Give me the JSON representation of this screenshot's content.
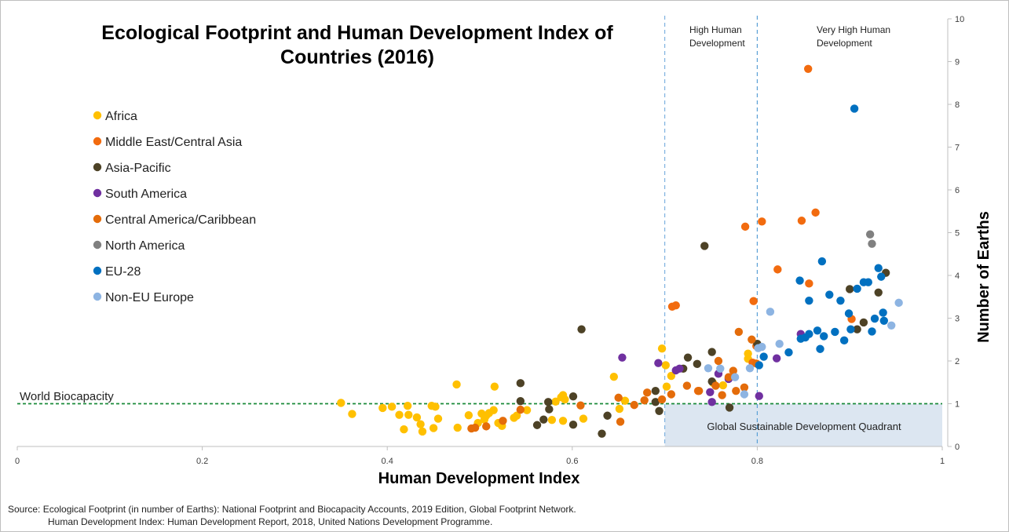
{
  "chart_data": {
    "type": "scatter",
    "title_lines": [
      "Ecological Footprint and Human Development Index of",
      "Countries (2016)"
    ],
    "xlabel": "Human Development Index",
    "ylabel": "Number of Earths",
    "xlim": [
      0,
      1
    ],
    "ylim": [
      0,
      10
    ],
    "xticks": [
      "0",
      "0.2",
      "0.4",
      "0.6",
      "0.8",
      "1"
    ],
    "yticks": [
      "0",
      "1",
      "2",
      "3",
      "4",
      "5",
      "6",
      "7",
      "8",
      "9",
      "10"
    ],
    "legend_position": "left",
    "reference_line": {
      "label": "World Biocapacity",
      "y": 1,
      "color": "#1a8a3a"
    },
    "regions": [
      {
        "label_lines": [
          "High Human",
          "Development"
        ],
        "x_from": 0.7,
        "x_to": 0.8
      },
      {
        "label_lines": [
          "Very High Human",
          "Development"
        ],
        "x_from": 0.8,
        "x_to": 1.0
      }
    ],
    "quadrant": {
      "label": "Global Sustainable Development Quadrant",
      "x": [
        0.7,
        1.0
      ],
      "y": [
        0,
        1
      ],
      "color": "#dce6f1"
    },
    "series": [
      {
        "name": "Africa",
        "color": "#ffc000",
        "points": [
          [
            0.35,
            1.02
          ],
          [
            0.362,
            0.76
          ],
          [
            0.395,
            0.9
          ],
          [
            0.405,
            0.93
          ],
          [
            0.413,
            0.74
          ],
          [
            0.418,
            0.4
          ],
          [
            0.422,
            0.95
          ],
          [
            0.423,
            0.74
          ],
          [
            0.432,
            0.68
          ],
          [
            0.436,
            0.52
          ],
          [
            0.438,
            0.35
          ],
          [
            0.448,
            0.95
          ],
          [
            0.45,
            0.43
          ],
          [
            0.452,
            0.93
          ],
          [
            0.455,
            0.65
          ],
          [
            0.475,
            1.45
          ],
          [
            0.476,
            0.44
          ],
          [
            0.488,
            0.73
          ],
          [
            0.498,
            0.55
          ],
          [
            0.502,
            0.77
          ],
          [
            0.505,
            0.63
          ],
          [
            0.507,
            0.72
          ],
          [
            0.51,
            0.78
          ],
          [
            0.515,
            0.85
          ],
          [
            0.516,
            1.4
          ],
          [
            0.52,
            0.55
          ],
          [
            0.524,
            0.48
          ],
          [
            0.537,
            0.67
          ],
          [
            0.54,
            0.72
          ],
          [
            0.551,
            0.85
          ],
          [
            0.578,
            0.62
          ],
          [
            0.582,
            1.05
          ],
          [
            0.588,
            1.15
          ],
          [
            0.59,
            1.2
          ],
          [
            0.592,
            1.1
          ],
          [
            0.59,
            0.6
          ],
          [
            0.612,
            0.65
          ],
          [
            0.645,
            1.63
          ],
          [
            0.651,
            0.88
          ],
          [
            0.657,
            1.07
          ],
          [
            0.697,
            2.29
          ],
          [
            0.701,
            1.9
          ],
          [
            0.702,
            1.4
          ],
          [
            0.707,
            1.65
          ],
          [
            0.752,
            1.49
          ],
          [
            0.763,
            1.43
          ],
          [
            0.79,
            2.05
          ],
          [
            0.79,
            2.17
          ]
        ]
      },
      {
        "name": "Middle East/Central Asia",
        "color": "#f26b0f",
        "points": [
          [
            0.708,
            3.27
          ],
          [
            0.712,
            3.3
          ],
          [
            0.736,
            1.3
          ],
          [
            0.787,
            5.14
          ],
          [
            0.795,
            1.96
          ],
          [
            0.796,
            3.4
          ],
          [
            0.799,
            2.35
          ],
          [
            0.805,
            5.26
          ],
          [
            0.822,
            4.14
          ],
          [
            0.848,
            5.28
          ],
          [
            0.855,
            8.83
          ],
          [
            0.856,
            3.81
          ],
          [
            0.863,
            5.47
          ],
          [
            0.902,
            2.98
          ]
        ]
      },
      {
        "name": "Asia-Pacific",
        "color": "#4d4226",
        "points": [
          [
            0.544,
            1.48
          ],
          [
            0.544,
            1.06
          ],
          [
            0.562,
            0.5
          ],
          [
            0.569,
            0.63
          ],
          [
            0.574,
            1.04
          ],
          [
            0.575,
            0.87
          ],
          [
            0.601,
            1.17
          ],
          [
            0.601,
            0.51
          ],
          [
            0.61,
            2.74
          ],
          [
            0.632,
            0.3
          ],
          [
            0.638,
            0.72
          ],
          [
            0.69,
            1.3
          ],
          [
            0.69,
            1.04
          ],
          [
            0.694,
            0.83
          ],
          [
            0.72,
            1.82
          ],
          [
            0.725,
            2.08
          ],
          [
            0.735,
            1.93
          ],
          [
            0.743,
            4.69
          ],
          [
            0.751,
            2.21
          ],
          [
            0.751,
            1.52
          ],
          [
            0.77,
            0.91
          ],
          [
            0.8,
            2.4
          ],
          [
            0.9,
            3.68
          ],
          [
            0.908,
            2.74
          ],
          [
            0.915,
            2.9
          ],
          [
            0.931,
            3.6
          ],
          [
            0.939,
            4.06
          ]
        ]
      },
      {
        "name": "South America",
        "color": "#7030a0",
        "points": [
          [
            0.654,
            2.08
          ],
          [
            0.693,
            1.95
          ],
          [
            0.712,
            1.78
          ],
          [
            0.716,
            1.82
          ],
          [
            0.749,
            1.27
          ],
          [
            0.751,
            1.04
          ],
          [
            0.758,
            1.7
          ],
          [
            0.769,
            1.58
          ],
          [
            0.802,
            1.18
          ],
          [
            0.821,
            2.06
          ],
          [
            0.847,
            2.63
          ]
        ]
      },
      {
        "name": "Central America/Caribbean",
        "color": "#e46c0a",
        "points": [
          [
            0.491,
            0.42
          ],
          [
            0.495,
            0.44
          ],
          [
            0.507,
            0.47
          ],
          [
            0.525,
            0.6
          ],
          [
            0.544,
            0.86
          ],
          [
            0.609,
            0.96
          ],
          [
            0.65,
            1.14
          ],
          [
            0.652,
            0.58
          ],
          [
            0.667,
            0.97
          ],
          [
            0.678,
            1.08
          ],
          [
            0.681,
            1.26
          ],
          [
            0.697,
            1.1
          ],
          [
            0.707,
            1.22
          ],
          [
            0.724,
            1.42
          ],
          [
            0.737,
            1.3
          ],
          [
            0.755,
            1.42
          ],
          [
            0.758,
            2.0
          ],
          [
            0.762,
            1.2
          ],
          [
            0.769,
            1.62
          ],
          [
            0.774,
            1.77
          ],
          [
            0.777,
            1.3
          ],
          [
            0.78,
            2.68
          ],
          [
            0.786,
            1.38
          ],
          [
            0.794,
            2.5
          ],
          [
            0.799,
            1.94
          ]
        ]
      },
      {
        "name": "North America",
        "color": "#808080",
        "points": [
          [
            0.922,
            4.96
          ],
          [
            0.924,
            4.74
          ]
        ]
      },
      {
        "name": "EU-28",
        "color": "#0070c0",
        "points": [
          [
            0.802,
            1.9
          ],
          [
            0.807,
            2.1
          ],
          [
            0.834,
            2.2
          ],
          [
            0.846,
            3.88
          ],
          [
            0.847,
            2.52
          ],
          [
            0.852,
            2.55
          ],
          [
            0.856,
            2.63
          ],
          [
            0.856,
            3.41
          ],
          [
            0.865,
            2.71
          ],
          [
            0.868,
            2.28
          ],
          [
            0.872,
            2.58
          ],
          [
            0.87,
            4.33
          ],
          [
            0.878,
            3.55
          ],
          [
            0.884,
            2.68
          ],
          [
            0.89,
            3.41
          ],
          [
            0.894,
            2.48
          ],
          [
            0.899,
            3.11
          ],
          [
            0.901,
            2.74
          ],
          [
            0.905,
            7.9
          ],
          [
            0.908,
            3.69
          ],
          [
            0.915,
            3.84
          ],
          [
            0.92,
            3.84
          ],
          [
            0.924,
            2.69
          ],
          [
            0.927,
            2.99
          ],
          [
            0.931,
            4.17
          ],
          [
            0.934,
            3.97
          ],
          [
            0.936,
            3.13
          ],
          [
            0.937,
            2.94
          ]
        ]
      },
      {
        "name": "Non-EU Europe",
        "color": "#8db4e2",
        "points": [
          [
            0.747,
            1.83
          ],
          [
            0.76,
            1.82
          ],
          [
            0.776,
            1.62
          ],
          [
            0.786,
            1.22
          ],
          [
            0.792,
            1.83
          ],
          [
            0.801,
            2.3
          ],
          [
            0.805,
            2.33
          ],
          [
            0.814,
            3.15
          ],
          [
            0.824,
            2.4
          ],
          [
            0.945,
            2.83
          ],
          [
            0.953,
            3.36
          ]
        ]
      }
    ]
  },
  "source": {
    "line1": "Source: Ecological Footprint (in number of Earths): National Footprint and Biocapacity Accounts, 2019 Edition, Global Footprint Network.",
    "line2": "Human Development Index: Human Development Report, 2018, United Nations Development Programme."
  }
}
